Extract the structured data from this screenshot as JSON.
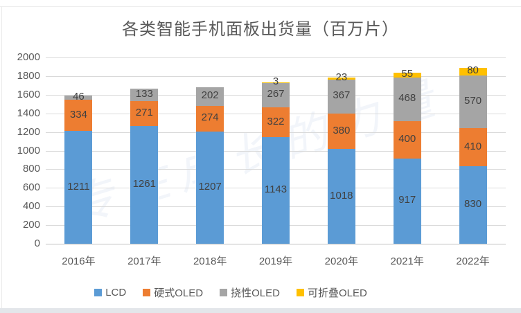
{
  "watermark": {
    "text": "专注成长的力量"
  },
  "chart_data": {
    "type": "bar",
    "subtype": "stacked",
    "title": "各类智能手机面板出货量（百万片）",
    "categories": [
      "2016年",
      "2017年",
      "2018年",
      "2019年",
      "2020年",
      "2021年",
      "2022年"
    ],
    "series": [
      {
        "name": "LCD",
        "color": "#5B9BD5",
        "values": [
          1211,
          1261,
          1207,
          1143,
          1018,
          917,
          830
        ]
      },
      {
        "name": "硬式OLED",
        "color": "#ED7D31",
        "values": [
          334,
          271,
          274,
          322,
          380,
          400,
          410
        ]
      },
      {
        "name": "挠性OLED",
        "color": "#A5A5A5",
        "values": [
          46,
          133,
          202,
          267,
          367,
          468,
          570
        ]
      },
      {
        "name": "可折叠OLED",
        "color": "#FFC000",
        "values": [
          0,
          0,
          0,
          3,
          23,
          55,
          80
        ]
      }
    ],
    "totals": [
      1591,
      1665,
      1683,
      1735,
      1788,
      1840,
      1890
    ],
    "xlabel": "",
    "ylabel": "",
    "y_axis": {
      "min": 0,
      "max": 2000,
      "step": 200
    },
    "grid": true,
    "legend_position": "bottom",
    "data_labels": true,
    "label_color": "#404040",
    "axis_text_color": "#595959",
    "gridline_color": "#d9d9d9"
  }
}
